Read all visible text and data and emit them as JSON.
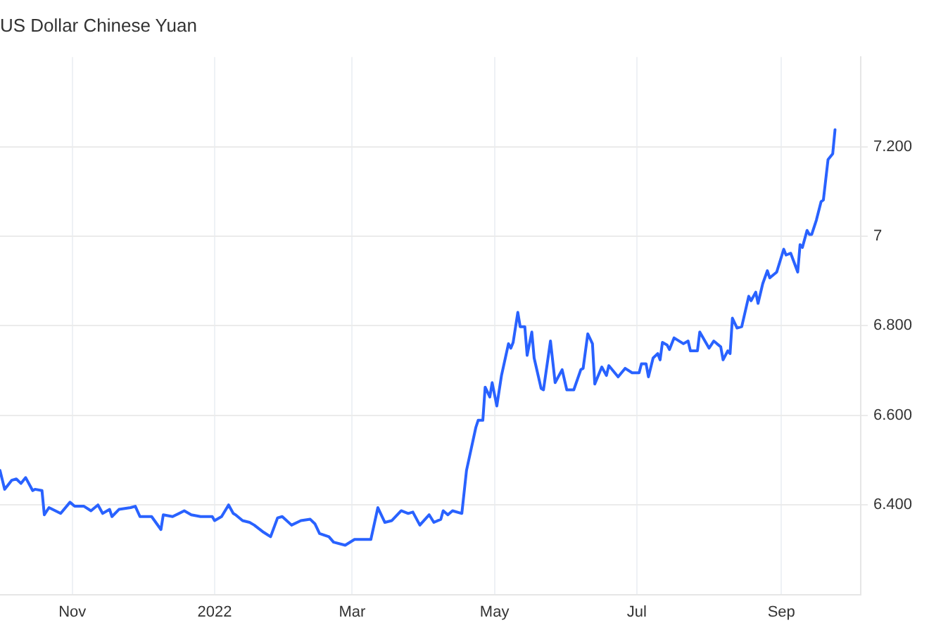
{
  "chart_data": {
    "type": "line",
    "title": "US Dollar Chinese Yuan",
    "x": [
      "2021-10-01",
      "2021-10-03",
      "2021-10-06",
      "2021-10-08",
      "2021-10-10",
      "2021-10-12",
      "2021-10-15",
      "2021-10-16",
      "2021-10-19",
      "2021-10-20",
      "2021-10-22",
      "2021-10-27",
      "2021-10-31",
      "2021-11-02",
      "2021-11-06",
      "2021-11-09",
      "2021-11-12",
      "2021-11-14",
      "2021-11-17",
      "2021-11-18",
      "2021-11-21",
      "2021-11-26",
      "2021-11-28",
      "2021-11-30",
      "2021-12-05",
      "2021-12-09",
      "2021-12-10",
      "2021-12-14",
      "2021-12-19",
      "2021-12-22",
      "2021-12-26",
      "2021-12-31",
      "2022-01-01",
      "2022-01-04",
      "2022-01-07",
      "2022-01-09",
      "2022-01-10",
      "2022-01-13",
      "2022-01-16",
      "2022-01-18",
      "2022-01-22",
      "2022-01-25",
      "2022-01-28",
      "2022-01-30",
      "2022-02-03",
      "2022-02-07",
      "2022-02-11",
      "2022-02-13",
      "2022-02-15",
      "2022-02-19",
      "2022-02-21",
      "2022-02-26",
      "2022-03-02",
      "2022-03-09",
      "2022-03-12",
      "2022-03-15",
      "2022-03-18",
      "2022-03-22",
      "2022-03-25",
      "2022-03-27",
      "2022-03-30",
      "2022-04-03",
      "2022-04-05",
      "2022-04-08",
      "2022-04-09",
      "2022-04-11",
      "2022-04-13",
      "2022-04-17",
      "2022-04-19",
      "2022-04-23",
      "2022-04-24",
      "2022-04-26",
      "2022-04-27",
      "2022-04-29",
      "2022-04-30",
      "2022-05-02",
      "2022-05-04",
      "2022-05-07",
      "2022-05-08",
      "2022-05-09",
      "2022-05-11",
      "2022-05-12",
      "2022-05-14",
      "2022-05-15",
      "2022-05-17",
      "2022-05-18",
      "2022-05-21",
      "2022-05-22",
      "2022-05-25",
      "2022-05-27",
      "2022-05-30",
      "2022-06-01",
      "2022-06-04",
      "2022-06-07",
      "2022-06-08",
      "2022-06-10",
      "2022-06-12",
      "2022-06-13",
      "2022-06-16",
      "2022-06-18",
      "2022-06-19",
      "2022-06-23",
      "2022-06-26",
      "2022-06-29",
      "2022-07-02",
      "2022-07-03",
      "2022-07-05",
      "2022-07-06",
      "2022-07-08",
      "2022-07-10",
      "2022-07-11",
      "2022-07-12",
      "2022-07-14",
      "2022-07-15",
      "2022-07-17",
      "2022-07-21",
      "2022-07-23",
      "2022-07-24",
      "2022-07-27",
      "2022-07-28",
      "2022-08-01",
      "2022-08-03",
      "2022-08-06",
      "2022-08-07",
      "2022-08-09",
      "2022-08-10",
      "2022-08-11",
      "2022-08-13",
      "2022-08-15",
      "2022-08-18",
      "2022-08-19",
      "2022-08-21",
      "2022-08-22",
      "2022-08-24",
      "2022-08-26",
      "2022-08-27",
      "2022-08-30",
      "2022-09-02",
      "2022-09-03",
      "2022-09-05",
      "2022-09-08",
      "2022-09-09",
      "2022-09-10",
      "2022-09-12",
      "2022-09-13",
      "2022-09-14",
      "2022-09-16",
      "2022-09-18",
      "2022-09-19",
      "2022-09-21",
      "2022-09-23",
      "2022-09-24"
    ],
    "series": [
      {
        "color": "#2962ff",
        "values": [
          6.477,
          6.435,
          6.455,
          6.458,
          6.448,
          6.461,
          6.432,
          6.435,
          6.432,
          6.378,
          6.394,
          6.381,
          6.406,
          6.397,
          6.397,
          6.387,
          6.4,
          6.381,
          6.39,
          6.374,
          6.39,
          6.394,
          6.397,
          6.374,
          6.374,
          6.345,
          6.378,
          6.374,
          6.387,
          6.378,
          6.374,
          6.374,
          6.365,
          6.374,
          6.4,
          6.381,
          6.378,
          6.365,
          6.361,
          6.355,
          6.339,
          6.329,
          6.371,
          6.374,
          6.355,
          6.365,
          6.368,
          6.358,
          6.336,
          6.329,
          6.317,
          6.31,
          6.323,
          6.323,
          6.394,
          6.361,
          6.365,
          6.387,
          6.381,
          6.384,
          6.355,
          6.378,
          6.361,
          6.368,
          6.387,
          6.378,
          6.387,
          6.381,
          6.477,
          6.573,
          6.589,
          6.589,
          6.663,
          6.641,
          6.673,
          6.621,
          6.689,
          6.76,
          6.75,
          6.763,
          6.83,
          6.798,
          6.798,
          6.734,
          6.786,
          6.728,
          6.66,
          6.657,
          6.766,
          6.673,
          6.702,
          6.657,
          6.657,
          6.702,
          6.705,
          6.782,
          6.76,
          6.67,
          6.708,
          6.689,
          6.711,
          6.686,
          6.705,
          6.695,
          6.695,
          6.715,
          6.715,
          6.686,
          6.728,
          6.738,
          6.724,
          6.763,
          6.757,
          6.747,
          6.773,
          6.76,
          6.766,
          6.744,
          6.744,
          6.786,
          6.75,
          6.766,
          6.753,
          6.724,
          6.744,
          6.738,
          6.817,
          6.795,
          6.798,
          6.866,
          6.856,
          6.875,
          6.85,
          6.894,
          6.923,
          6.907,
          6.92,
          6.971,
          6.958,
          6.962,
          6.92,
          6.981,
          6.975,
          7.013,
          7.004,
          7.004,
          7.036,
          7.077,
          7.081,
          7.171,
          7.184,
          7.238
        ]
      }
    ],
    "xlim": [
      "2021-10-01",
      "2022-10-05"
    ],
    "xticks": [
      {
        "value": "2021-11-01",
        "label": "Nov"
      },
      {
        "value": "2022-01-01",
        "label": "2022"
      },
      {
        "value": "2022-03-01",
        "label": "Mar"
      },
      {
        "value": "2022-05-01",
        "label": "May"
      },
      {
        "value": "2022-07-01",
        "label": "Jul"
      },
      {
        "value": "2022-09-01",
        "label": "Sep"
      }
    ],
    "ylim": [
      6.2,
      7.4
    ],
    "yticks": [
      {
        "value": 6.4,
        "label": "6.400"
      },
      {
        "value": 6.6,
        "label": "6.600"
      },
      {
        "value": 6.8,
        "label": "6.800"
      },
      {
        "value": 7,
        "label": "7"
      },
      {
        "value": 7.2,
        "label": "7.200"
      }
    ],
    "grid": true,
    "legend": false,
    "marker": "none",
    "line_style": "solid"
  }
}
